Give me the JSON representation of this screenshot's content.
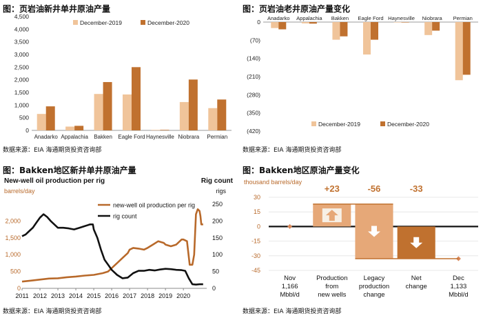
{
  "chart_data": [
    {
      "type": "bar",
      "title": "图：页岩油新井单井原油产量",
      "source": "数据来源：EIA  海通期货投资咨询部",
      "categories": [
        "Anadarko",
        "Appalachia",
        "Bakken",
        "Eagle Ford",
        "Haynesville",
        "Niobrara",
        "Permian"
      ],
      "series": [
        {
          "name": "December-2019",
          "color": "#f0c49a",
          "values": [
            650,
            150,
            1440,
            1420,
            20,
            1120,
            880
          ]
        },
        {
          "name": "December-2020",
          "color": "#c0712f",
          "values": [
            950,
            180,
            1910,
            2500,
            20,
            2010,
            1220
          ]
        }
      ],
      "yticks": [
        "0",
        "500",
        "1,000",
        "1,500",
        "2,000",
        "2,500",
        "3,000",
        "3,500",
        "4,000",
        "4,500"
      ],
      "ylim": [
        0,
        4500
      ],
      "legend_position": "top-right"
    },
    {
      "type": "bar",
      "title": "图：页岩油老井原油产量变化",
      "source": "数据来源：EIA  海通期货投资咨询部",
      "categories": [
        "Anadarko",
        "Appalachia",
        "Bakken",
        "Eagle Ford",
        "Haynesville",
        "Niobrara",
        "Permian"
      ],
      "series": [
        {
          "name": "December-2019",
          "color": "#f0c49a",
          "values": [
            -23,
            -5,
            -68,
            -125,
            0,
            -50,
            -224
          ]
        },
        {
          "name": "December-2020",
          "color": "#c0712f",
          "values": [
            -28,
            -6,
            -55,
            -68,
            0,
            -33,
            -203
          ]
        }
      ],
      "yticks": [
        "0",
        "(70)",
        "(140)",
        "(210)",
        "(280)",
        "(350)",
        "(420)"
      ],
      "ylim": [
        -420,
        0
      ],
      "legend_position": "bottom"
    },
    {
      "type": "line",
      "title": "图：Bakken地区新井单井原油产量",
      "source": "数据来源：EIA  海通期货投资咨询部",
      "subtitle": "New-well oil production per rig",
      "left_unit": "barrels/day",
      "right_title": "Rig count",
      "right_unit": "rigs",
      "xticks": [
        "2011",
        "2012",
        "2013",
        "2014",
        "2015",
        "2016",
        "2017",
        "2018",
        "2019",
        "2020"
      ],
      "xlim": [
        2011,
        2021.3
      ],
      "ylim_left": [
        0,
        2500
      ],
      "ylim_right": [
        0,
        250
      ],
      "yticks_left": [
        "0",
        "500",
        "1,000",
        "1,500",
        "2,000"
      ],
      "yticks_right": [
        "0",
        "50",
        "100",
        "150",
        "200",
        "250"
      ],
      "series": [
        {
          "name": "new-well oil production per rig",
          "axis": "left",
          "color": "#b8692a",
          "x": [
            2011.0,
            2011.5,
            2012.0,
            2012.5,
            2013.0,
            2013.5,
            2014.0,
            2014.5,
            2015.0,
            2015.5,
            2015.8,
            2016.0,
            2016.3,
            2016.6,
            2016.9,
            2017.0,
            2017.2,
            2017.5,
            2017.8,
            2018.0,
            2018.3,
            2018.6,
            2018.9,
            2019.0,
            2019.3,
            2019.6,
            2019.9,
            2020.0,
            2020.2,
            2020.35,
            2020.5,
            2020.6,
            2020.7,
            2020.8,
            2020.9,
            2020.95,
            2021.0,
            2021.1
          ],
          "y": [
            200,
            230,
            260,
            290,
            300,
            330,
            350,
            380,
            400,
            450,
            500,
            600,
            750,
            900,
            1050,
            1150,
            1200,
            1180,
            1150,
            1200,
            1300,
            1400,
            1350,
            1300,
            1250,
            1300,
            1450,
            1450,
            1400,
            700,
            700,
            1000,
            2200,
            2350,
            2300,
            2150,
            1900,
            1900
          ]
        },
        {
          "name": "rig count",
          "axis": "right",
          "color": "#111111",
          "x": [
            2011.0,
            2011.2,
            2011.4,
            2011.6,
            2011.8,
            2012.0,
            2012.2,
            2012.4,
            2012.6,
            2012.8,
            2013.0,
            2013.3,
            2013.6,
            2013.9,
            2014.2,
            2014.5,
            2014.8,
            2014.95,
            2015.0,
            2015.2,
            2015.4,
            2015.6,
            2015.8,
            2016.0,
            2016.3,
            2016.6,
            2016.9,
            2017.2,
            2017.5,
            2017.8,
            2018.1,
            2018.4,
            2018.7,
            2019.0,
            2019.3,
            2019.6,
            2019.9,
            2020.1,
            2020.3,
            2020.5,
            2020.7,
            2020.9,
            2021.1
          ],
          "y": [
            155,
            160,
            170,
            180,
            195,
            210,
            220,
            212,
            200,
            190,
            180,
            180,
            178,
            175,
            180,
            185,
            190,
            190,
            175,
            150,
            115,
            85,
            70,
            55,
            40,
            30,
            32,
            45,
            52,
            52,
            55,
            53,
            56,
            58,
            57,
            55,
            54,
            52,
            30,
            12,
            11,
            12,
            12
          ]
        }
      ],
      "legend_position": "top-right"
    },
    {
      "type": "bar",
      "subtype": "waterfall",
      "title": "图：Bakken地区原油产量变化",
      "source": "数据来源：EIA  海通期货投资咨询部",
      "ylabel": "thousand barrels/day",
      "yticks": [
        "30",
        "15",
        "0",
        "-15",
        "-30",
        "-45"
      ],
      "ylim": [
        -45,
        30
      ],
      "categories": [
        {
          "lines": [
            "Nov",
            "1,166",
            "Mbbl/d"
          ]
        },
        {
          "lines": [
            "Production",
            "from",
            "new wells"
          ]
        },
        {
          "lines": [
            "Legacy",
            "production",
            "change"
          ]
        },
        {
          "lines": [
            "Net",
            "change"
          ]
        },
        {
          "lines": [
            "Dec",
            "1,133",
            "Mbbl/d"
          ]
        }
      ],
      "values": [
        0,
        23,
        -56,
        -33,
        -33
      ],
      "value_labels": [
        "",
        "+23",
        "-56",
        "-33",
        ""
      ],
      "colors": [
        "#d9885a",
        "#e6a878",
        "#e6a878",
        "#c0712f",
        "#d9885a"
      ]
    }
  ]
}
